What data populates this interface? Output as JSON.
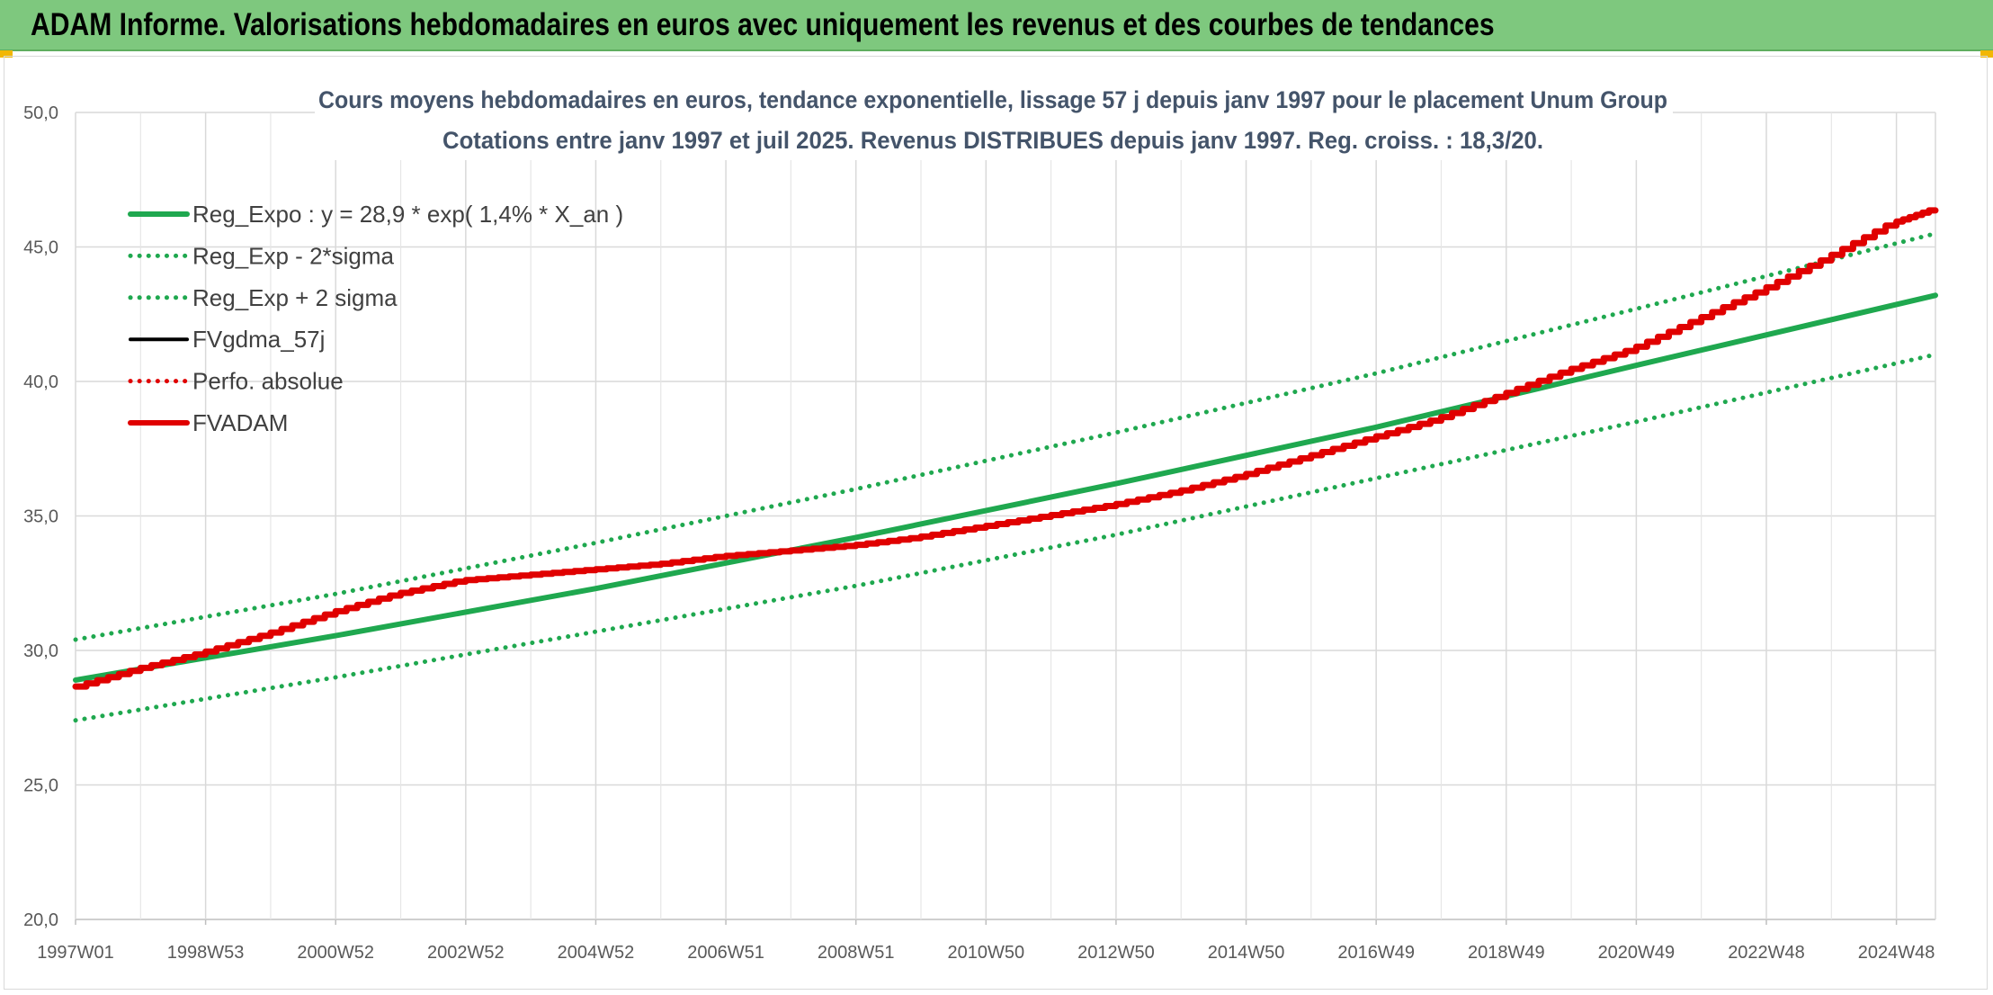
{
  "page": {
    "banner_title": "ADAM Informe. Valorisations hebdomadaires en euros avec uniquement les revenus et des courbes de tendances"
  },
  "chart_data": {
    "type": "line",
    "title_line1": "Cours moyens hebdomadaires en euros, tendance exponentielle, lissage 57 j depuis janv 1997 pour le placement Unum Group",
    "title_line2": "Cotations entre janv 1997 et juil 2025. Revenus DISTRIBUES depuis janv 1997. Reg. croiss. : 18,3/20.",
    "xlabel": "",
    "ylabel": "",
    "ylim": [
      20,
      50
    ],
    "y_ticks": [
      "20,0",
      "25,0",
      "30,0",
      "35,0",
      "40,0",
      "45,0",
      "50,0"
    ],
    "y_tick_values": [
      20,
      25,
      30,
      35,
      40,
      45,
      50
    ],
    "x_range": [
      1997.0,
      2025.6
    ],
    "x_tick_labels": [
      "1997W01",
      "1998W53",
      "2000W52",
      "2002W52",
      "2004W52",
      "2006W51",
      "2008W51",
      "2010W50",
      "2012W50",
      "2014W50",
      "2016W49",
      "2018W49",
      "2020W49",
      "2022W48",
      "2024W48"
    ],
    "x_tick_values": [
      1997.0,
      1999.0,
      2001.0,
      2003.0,
      2005.0,
      2007.0,
      2009.0,
      2011.0,
      2013.0,
      2015.0,
      2017.0,
      2019.0,
      2021.0,
      2023.0,
      2025.0
    ],
    "grid": true,
    "legend_position": "top-left",
    "series": [
      {
        "name": "Reg_Expo : y = 28,9 * exp( 1,4% *  X_an )",
        "color": "#1fa84f",
        "style": "solid",
        "x": [
          1997.0,
          2001.0,
          2005.0,
          2009.0,
          2013.0,
          2017.0,
          2021.0,
          2025.6
        ],
        "values": [
          28.9,
          30.55,
          32.3,
          34.2,
          36.2,
          38.3,
          40.6,
          43.2
        ]
      },
      {
        "name": "Reg_Exp - 2*sigma",
        "color": "#1fa84f",
        "style": "dotted",
        "x": [
          1997.0,
          2001.0,
          2005.0,
          2009.0,
          2013.0,
          2017.0,
          2021.0,
          2025.6
        ],
        "values": [
          27.4,
          29.0,
          30.7,
          32.4,
          34.3,
          36.4,
          38.5,
          41.0
        ]
      },
      {
        "name": "Reg_Exp + 2 sigma",
        "color": "#1fa84f",
        "style": "dotted",
        "x": [
          1997.0,
          2001.0,
          2005.0,
          2009.0,
          2013.0,
          2017.0,
          2021.0,
          2025.6
        ],
        "values": [
          30.4,
          32.1,
          34.0,
          36.0,
          38.1,
          40.3,
          42.7,
          45.5
        ]
      },
      {
        "name": "FVgdma_57j",
        "color": "#000000",
        "style": "solid",
        "x": [],
        "values": []
      },
      {
        "name": "Perfo. absolue",
        "color": "#e00000",
        "style": "dotted",
        "x": [],
        "values": []
      },
      {
        "name": "FVADAM",
        "color": "#e00000",
        "style": "solid",
        "x": [
          1997.0,
          1998.0,
          1999.0,
          2000.0,
          2001.0,
          2002.0,
          2003.0,
          2004.0,
          2005.0,
          2006.0,
          2007.0,
          2008.0,
          2009.0,
          2010.0,
          2011.0,
          2012.0,
          2013.0,
          2014.0,
          2015.0,
          2016.0,
          2017.0,
          2018.0,
          2019.0,
          2020.0,
          2021.0,
          2022.0,
          2023.0,
          2024.0,
          2025.0,
          2025.6
        ],
        "values": [
          28.6,
          29.3,
          29.9,
          30.6,
          31.4,
          32.1,
          32.6,
          32.8,
          33.0,
          33.2,
          33.5,
          33.7,
          33.9,
          34.2,
          34.6,
          35.0,
          35.4,
          35.9,
          36.5,
          37.2,
          37.9,
          38.6,
          39.5,
          40.4,
          41.2,
          42.3,
          43.4,
          44.6,
          45.9,
          46.4
        ]
      }
    ]
  }
}
